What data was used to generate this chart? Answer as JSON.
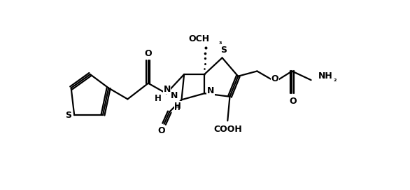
{
  "background_color": "#ffffff",
  "line_color": "#000000",
  "line_width": 1.6,
  "fig_width": 5.86,
  "fig_height": 2.71,
  "dpi": 100,
  "xlim": [
    0,
    10
  ],
  "ylim": [
    0,
    4.6
  ]
}
